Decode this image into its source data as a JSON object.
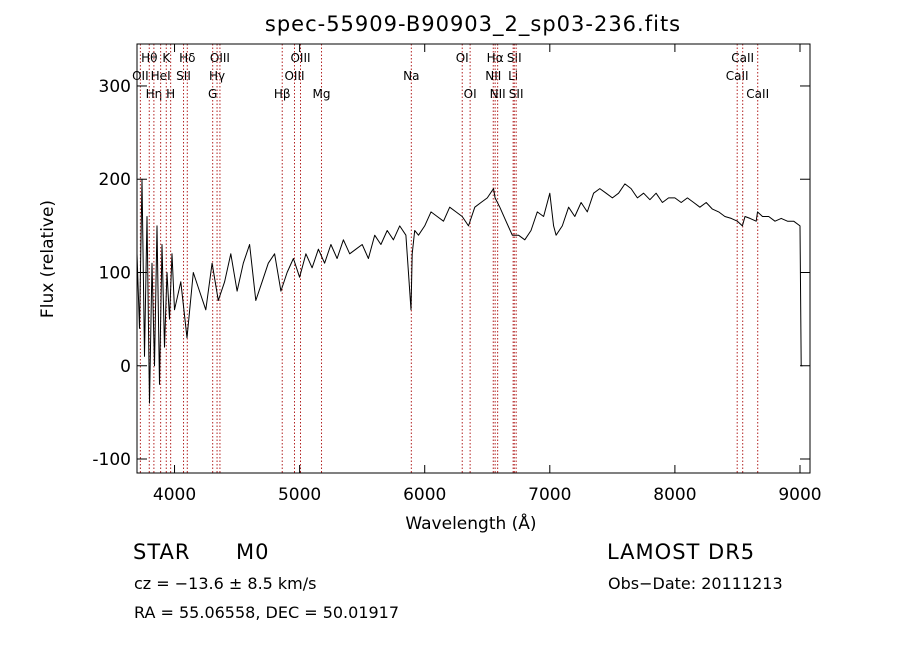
{
  "chart_data": {
    "type": "line",
    "title": "spec-55909-B90903_2_sp03-236.fits",
    "xlabel": "Wavelength (Å)",
    "ylabel": "Flux (relative)",
    "xlim": [
      3700,
      9080
    ],
    "ylim": [
      -115,
      345
    ],
    "x_ticks": [
      4000,
      5000,
      6000,
      7000,
      8000,
      9000
    ],
    "y_ticks": [
      -100,
      0,
      100,
      200,
      300
    ],
    "grid": false,
    "line_color": "#000000",
    "marker_color": "#b22222",
    "series": [
      {
        "x": [
          3700,
          3720,
          3740,
          3760,
          3780,
          3800,
          3820,
          3840,
          3860,
          3880,
          3900,
          3920,
          3940,
          3960,
          3980,
          4000,
          4050,
          4100,
          4150,
          4200,
          4250,
          4300,
          4350,
          4400,
          4450,
          4500,
          4550,
          4600,
          4650,
          4700,
          4750,
          4800,
          4850,
          4900,
          4950,
          5000,
          5050,
          5100,
          5150,
          5200,
          5250,
          5300,
          5350,
          5400,
          5450,
          5500,
          5550,
          5600,
          5650,
          5700,
          5750,
          5800,
          5850,
          5890,
          5900,
          5920,
          5950,
          6000,
          6050,
          6100,
          6150,
          6200,
          6250,
          6300,
          6350,
          6400,
          6450,
          6500,
          6550,
          6563,
          6600,
          6650,
          6700,
          6750,
          6800,
          6850,
          6900,
          6950,
          7000,
          7030,
          7050,
          7100,
          7150,
          7200,
          7250,
          7300,
          7350,
          7400,
          7450,
          7500,
          7550,
          7600,
          7650,
          7700,
          7750,
          7800,
          7850,
          7900,
          7950,
          8000,
          8050,
          8100,
          8150,
          8200,
          8250,
          8300,
          8350,
          8400,
          8450,
          8500,
          8540,
          8560,
          8600,
          8650,
          8660,
          8700,
          8750,
          8800,
          8850,
          8900,
          8950,
          9000,
          9010,
          9020
        ],
        "values": [
          120,
          40,
          200,
          10,
          160,
          -40,
          110,
          0,
          150,
          -20,
          130,
          20,
          100,
          50,
          120,
          60,
          90,
          30,
          100,
          80,
          60,
          110,
          70,
          90,
          120,
          80,
          110,
          130,
          70,
          90,
          110,
          120,
          80,
          100,
          115,
          95,
          120,
          105,
          125,
          110,
          130,
          115,
          135,
          120,
          125,
          130,
          115,
          140,
          130,
          145,
          135,
          150,
          140,
          60,
          120,
          145,
          140,
          150,
          165,
          160,
          155,
          170,
          165,
          160,
          150,
          170,
          175,
          180,
          190,
          180,
          170,
          155,
          140,
          140,
          135,
          145,
          165,
          160,
          185,
          150,
          140,
          150,
          170,
          160,
          175,
          165,
          185,
          190,
          185,
          180,
          185,
          195,
          190,
          180,
          185,
          178,
          185,
          175,
          180,
          180,
          175,
          180,
          175,
          170,
          175,
          168,
          165,
          160,
          158,
          155,
          150,
          160,
          158,
          155,
          165,
          160,
          160,
          155,
          158,
          155,
          155,
          150,
          0,
          0
        ]
      }
    ]
  },
  "line_markers": [
    {
      "label": "Hθ",
      "wavelength": 3798,
      "row": 1
    },
    {
      "label": "OII",
      "wavelength": 3727,
      "row": 2
    },
    {
      "label": "Hη",
      "wavelength": 3835,
      "row": 3
    },
    {
      "label": "HeI",
      "wavelength": 3889,
      "row": 2
    },
    {
      "label": "K",
      "wavelength": 3934,
      "row": 1
    },
    {
      "label": "H",
      "wavelength": 3969,
      "row": 3
    },
    {
      "label": "SII",
      "wavelength": 4072,
      "row": 2
    },
    {
      "label": "Hδ",
      "wavelength": 4102,
      "row": 1
    },
    {
      "label": "OIII",
      "wavelength": 4363,
      "row": 1
    },
    {
      "label": "Hγ",
      "wavelength": 4340,
      "row": 2
    },
    {
      "label": "G",
      "wavelength": 4305,
      "row": 3
    },
    {
      "label": "Hβ",
      "wavelength": 4861,
      "row": 3
    },
    {
      "label": "OIII",
      "wavelength": 4959,
      "row": 2
    },
    {
      "label": "OIII",
      "wavelength": 5007,
      "row": 1
    },
    {
      "label": "Mg",
      "wavelength": 5175,
      "row": 3
    },
    {
      "label": "Na",
      "wavelength": 5893,
      "row": 2
    },
    {
      "label": "OI",
      "wavelength": 6300,
      "row": 1
    },
    {
      "label": "OI",
      "wavelength": 6363,
      "row": 3
    },
    {
      "label": "NII",
      "wavelength": 6548,
      "row": 2
    },
    {
      "label": "Hα",
      "wavelength": 6563,
      "row": 1
    },
    {
      "label": "NII",
      "wavelength": 6583,
      "row": 3
    },
    {
      "label": "Li",
      "wavelength": 6707,
      "row": 2
    },
    {
      "label": "SII",
      "wavelength": 6716,
      "row": 1
    },
    {
      "label": "SII",
      "wavelength": 6731,
      "row": 3
    },
    {
      "label": "CaII",
      "wavelength": 8498,
      "row": 2
    },
    {
      "label": "CaII",
      "wavelength": 8542,
      "row": 1
    },
    {
      "label": "CaII",
      "wavelength": 8662,
      "row": 3
    }
  ],
  "info": {
    "class_label": "STAR",
    "subclass_label": "M0",
    "survey": "LAMOST DR5",
    "cz": "cz = −13.6 ± 8.5 km/s",
    "obs_date": "Obs−Date: 20111213",
    "coords": "RA =  55.06558, DEC =  50.01917"
  }
}
